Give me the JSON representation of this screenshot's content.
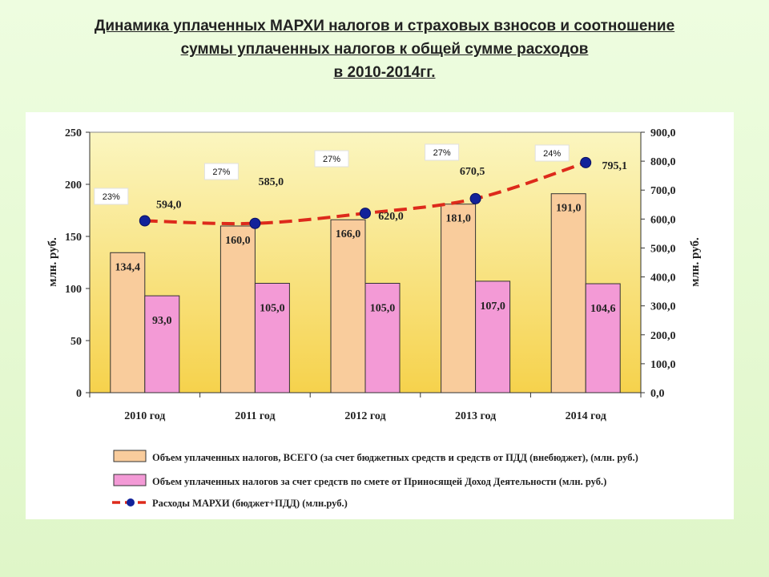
{
  "title": {
    "line1": "Динамика уплаченных МАРХИ налогов и страховых взносов и соотношение",
    "line2": "суммы уплаченных налогов к общей сумме расходов",
    "line3": "в 2010-2014гг."
  },
  "colors": {
    "total_bar": "#f9cc9c",
    "pdd_bar": "#f39ad6",
    "line": "#dd2a1b",
    "marker": "#12229a",
    "plot_bg_top": "#fbf6c0",
    "plot_bg_bottom": "#f6d24c"
  },
  "chart_data": {
    "type": "bar",
    "categories": [
      "2010 год",
      "2011 год",
      "2012 год",
      "2013 год",
      "2014 год"
    ],
    "series": [
      {
        "name": "Объем уплаченных налогов, ВСЕГО (за счет бюджетных средств и средств от ПДД (внебюджет), (млн. руб.)",
        "type": "bar",
        "axis": "left",
        "values": [
          134.4,
          160.0,
          166.0,
          181.0,
          191.0
        ],
        "labels": [
          "134,4",
          "160,0",
          "166,0",
          "181,0",
          "191,0"
        ]
      },
      {
        "name": "Объем уплаченных налогов за счет средств по смете от Приносящей Доход Деятельности (млн. руб.)",
        "type": "bar",
        "axis": "left",
        "values": [
          93.0,
          105.0,
          105.0,
          107.0,
          104.6
        ],
        "labels": [
          "93,0",
          "105,0",
          "105,0",
          "107,0",
          "104,6"
        ]
      },
      {
        "name": "Расходы МАРХИ (бюджет+ПДД) (млн.руб.)",
        "type": "line",
        "axis": "right",
        "values": [
          594.0,
          585.0,
          620.0,
          670.5,
          795.1
        ],
        "labels": [
          "594,0",
          "585,0",
          "620,0",
          "670,5",
          "795,1"
        ]
      }
    ],
    "percent_labels": [
      "23%",
      "27%",
      "27%",
      "27%",
      "24%"
    ],
    "ylabel": "млн. руб.",
    "y2label": "млн. руб.",
    "ylim": [
      0,
      250
    ],
    "y2lim": [
      0,
      900
    ],
    "yticks": [
      "0",
      "50",
      "100",
      "150",
      "200",
      "250"
    ],
    "y2ticks": [
      "0,0",
      "100,0",
      "200,0",
      "300,0",
      "400,0",
      "500,0",
      "600,0",
      "700,0",
      "800,0",
      "900,0"
    ],
    "grid": false,
    "legend_position": "bottom"
  }
}
